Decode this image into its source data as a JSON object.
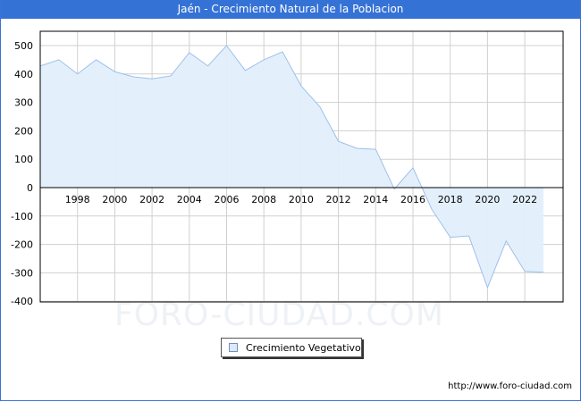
{
  "title": "Jaén - Crecimiento Natural de la Poblacion",
  "watermark": "FORO-CIUDAD.COM",
  "footer_url": "http://www.foro-ciudad.com",
  "legend": {
    "label": "Crecimiento Vegetativo"
  },
  "colors": {
    "title_bg": "#3572d6",
    "area_fill": "#e2effc",
    "line": "#9ec0ea",
    "grid": "#d0d0d0"
  },
  "chart_data": {
    "type": "area",
    "title": "Jaén - Crecimiento Natural de la Poblacion",
    "xlabel": "",
    "ylabel": "",
    "ylim": [
      -400,
      550
    ],
    "xlim": [
      1996,
      2024
    ],
    "grid": true,
    "legend_position": "bottom",
    "y_ticks": [
      500,
      400,
      300,
      200,
      100,
      0,
      -100,
      -200,
      -300,
      -400
    ],
    "x_ticks": [
      1998,
      2000,
      2002,
      2004,
      2006,
      2008,
      2010,
      2012,
      2014,
      2016,
      2018,
      2020,
      2022
    ],
    "x": [
      1996,
      1997,
      1998,
      1999,
      2000,
      2001,
      2002,
      2003,
      2004,
      2005,
      2006,
      2007,
      2008,
      2009,
      2010,
      2011,
      2012,
      2013,
      2014,
      2015,
      2016,
      2017,
      2018,
      2019,
      2020,
      2021,
      2022,
      2023
    ],
    "series": [
      {
        "name": "Crecimiento Vegetativo",
        "values": [
          428,
          450,
          400,
          450,
          408,
          390,
          383,
          393,
          475,
          428,
          500,
          412,
          450,
          478,
          358,
          285,
          163,
          138,
          135,
          -5,
          70,
          -75,
          -175,
          -170,
          -352,
          -188,
          -295,
          -298
        ]
      }
    ]
  }
}
